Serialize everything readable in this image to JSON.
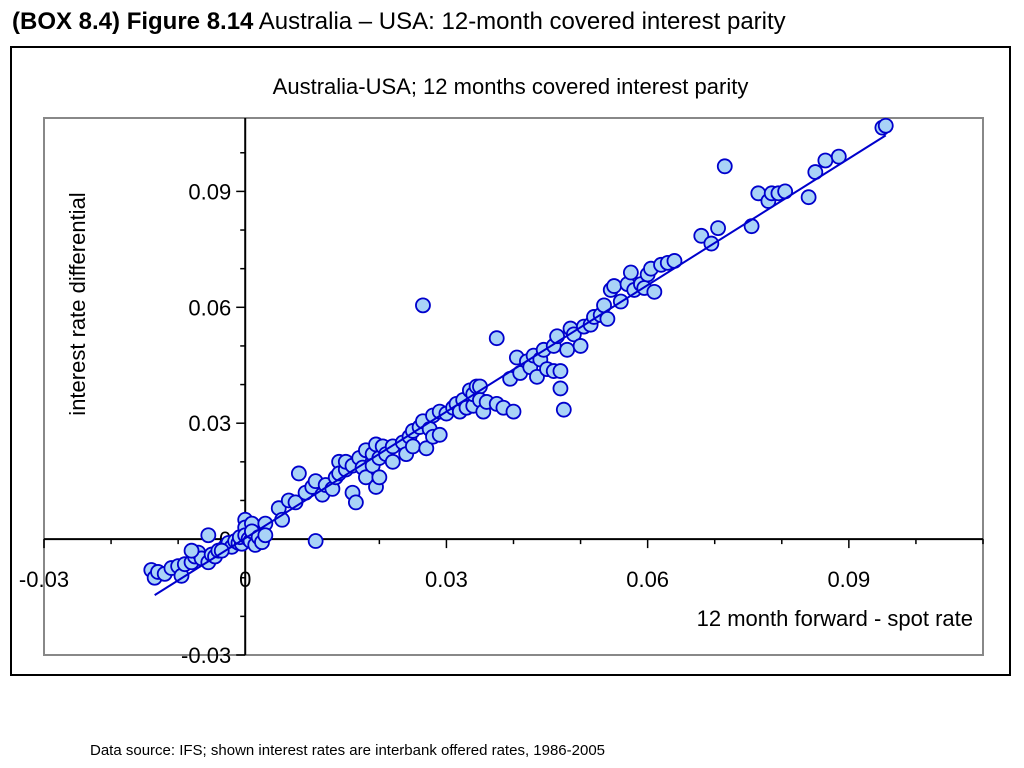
{
  "heading": {
    "prefix": "(BOX 8.4) Figure 8.14",
    "text": "Australia – USA: 12-month covered interest parity"
  },
  "source_note": "Data source: IFS; shown interest rates are interbank offered rates, 1986-2005",
  "colors": {
    "marker_fill": "#a9d3f7",
    "marker_stroke": "#0000cc",
    "fit_line": "#0000cc",
    "plot_border": "#888888"
  },
  "chart_data": {
    "type": "scatter",
    "title": "Australia-USA; 12 months covered interest parity",
    "xlabel": "12 month forward - spot rate",
    "ylabel": "interest rate differential",
    "xlim": [
      -0.03,
      0.11
    ],
    "ylim": [
      -0.03,
      0.109
    ],
    "x_ticks": [
      -0.03,
      0,
      0.03,
      0.06,
      0.09
    ],
    "x_tick_labels": [
      "-0.03",
      "0",
      "0.03",
      "0.06",
      "0.09"
    ],
    "y_ticks": [
      -0.03,
      0,
      0.03,
      0.06,
      0.09
    ],
    "y_tick_labels": [
      "-0.03",
      "0",
      "0.03",
      "0.06",
      "0.09"
    ],
    "grid": false,
    "legend": false,
    "fit_line": {
      "x": [
        -0.0135,
        0.0955
      ],
      "y": [
        -0.0145,
        0.1045
      ]
    },
    "series": [
      {
        "points": [
          [
            -0.014,
            -0.008
          ],
          [
            -0.0135,
            -0.01
          ],
          [
            -0.013,
            -0.0085
          ],
          [
            -0.012,
            -0.009
          ],
          [
            -0.011,
            -0.0075
          ],
          [
            -0.01,
            -0.007
          ],
          [
            -0.0095,
            -0.0095
          ],
          [
            -0.009,
            -0.0065
          ],
          [
            -0.008,
            -0.006
          ],
          [
            -0.0075,
            -0.0045
          ],
          [
            -0.007,
            -0.0035
          ],
          [
            -0.0065,
            -0.005
          ],
          [
            -0.0055,
            -0.006
          ],
          [
            -0.005,
            -0.004
          ],
          [
            -0.0045,
            -0.0045
          ],
          [
            -0.004,
            -0.003
          ],
          [
            -0.003,
            -0.002
          ],
          [
            -0.0025,
            -0.001
          ],
          [
            -0.002,
            -0.002
          ],
          [
            -0.0015,
            -0.0005
          ],
          [
            -0.001,
            -0.001
          ],
          [
            -0.0005,
            -0.0012
          ],
          [
            -0.0008,
            0.0005
          ],
          [
            0.0,
            0.005
          ],
          [
            0.0,
            0.003
          ],
          [
            0.0,
            0.001
          ],
          [
            0.0005,
            0.0
          ],
          [
            0.0008,
            -0.0005
          ],
          [
            0.001,
            0.004
          ],
          [
            0.001,
            0.002
          ],
          [
            0.0015,
            -0.0015
          ],
          [
            0.002,
            0.0005
          ],
          [
            0.0025,
            -0.0008
          ],
          [
            0.003,
            0.004
          ],
          [
            0.003,
            0.001
          ],
          [
            -0.008,
            -0.003
          ],
          [
            -0.0055,
            0.001
          ],
          [
            -0.0035,
            -0.003
          ],
          [
            0.005,
            0.008
          ],
          [
            0.0055,
            0.005
          ],
          [
            0.0065,
            0.01
          ],
          [
            0.0075,
            0.0095
          ],
          [
            0.008,
            0.017
          ],
          [
            0.009,
            0.012
          ],
          [
            0.01,
            0.0135
          ],
          [
            0.0105,
            0.015
          ],
          [
            0.0115,
            0.0115
          ],
          [
            0.012,
            0.014
          ],
          [
            0.013,
            0.013
          ],
          [
            0.0135,
            0.016
          ],
          [
            0.014,
            0.02
          ],
          [
            0.014,
            0.017
          ],
          [
            0.015,
            0.018
          ],
          [
            0.015,
            0.02
          ],
          [
            0.016,
            0.012
          ],
          [
            0.016,
            0.019
          ],
          [
            0.0165,
            0.0095
          ],
          [
            0.017,
            0.021
          ],
          [
            0.0175,
            0.0185
          ],
          [
            0.018,
            0.023
          ],
          [
            0.018,
            0.016
          ],
          [
            0.019,
            0.022
          ],
          [
            0.019,
            0.019
          ],
          [
            0.0195,
            0.0245
          ],
          [
            0.0195,
            0.0135
          ],
          [
            0.02,
            0.021
          ],
          [
            0.02,
            0.016
          ],
          [
            0.0205,
            0.024
          ],
          [
            0.021,
            0.022
          ],
          [
            0.022,
            0.024
          ],
          [
            0.022,
            0.02
          ],
          [
            0.0235,
            0.025
          ],
          [
            0.024,
            0.022
          ],
          [
            0.0245,
            0.0265
          ],
          [
            0.025,
            0.024
          ],
          [
            0.025,
            0.028
          ],
          [
            0.026,
            0.029
          ],
          [
            0.0265,
            0.0305
          ],
          [
            0.027,
            0.0235
          ],
          [
            0.0275,
            0.0285
          ],
          [
            0.028,
            0.0265
          ],
          [
            0.028,
            0.032
          ],
          [
            0.029,
            0.033
          ],
          [
            0.029,
            0.027
          ],
          [
            0.03,
            0.0325
          ],
          [
            0.031,
            0.034
          ],
          [
            0.0315,
            0.035
          ],
          [
            0.032,
            0.033
          ],
          [
            0.0325,
            0.036
          ],
          [
            0.033,
            0.034
          ],
          [
            0.0335,
            0.0385
          ],
          [
            0.034,
            0.0345
          ],
          [
            0.034,
            0.0375
          ],
          [
            0.0345,
            0.0395
          ],
          [
            0.035,
            0.0395
          ],
          [
            0.035,
            0.036
          ],
          [
            0.0355,
            0.033
          ],
          [
            0.036,
            0.0355
          ],
          [
            0.0375,
            0.035
          ],
          [
            0.0385,
            0.034
          ],
          [
            0.0375,
            0.052
          ],
          [
            0.0395,
            0.0415
          ],
          [
            0.04,
            0.033
          ],
          [
            0.0405,
            0.047
          ],
          [
            0.041,
            0.043
          ],
          [
            0.042,
            0.046
          ],
          [
            0.0425,
            0.0445
          ],
          [
            0.043,
            0.0475
          ],
          [
            0.0435,
            0.042
          ],
          [
            0.044,
            0.0465
          ],
          [
            0.0445,
            0.049
          ],
          [
            0.045,
            0.044
          ],
          [
            0.046,
            0.05
          ],
          [
            0.046,
            0.0435
          ],
          [
            0.0465,
            0.0525
          ],
          [
            0.047,
            0.039
          ],
          [
            0.047,
            0.0435
          ],
          [
            0.0475,
            0.0335
          ],
          [
            0.048,
            0.049
          ],
          [
            0.0485,
            0.0545
          ],
          [
            0.049,
            0.053
          ],
          [
            0.05,
            0.05
          ],
          [
            0.0505,
            0.055
          ],
          [
            0.0515,
            0.0555
          ],
          [
            0.052,
            0.0575
          ],
          [
            0.053,
            0.058
          ],
          [
            0.0535,
            0.0605
          ],
          [
            0.054,
            0.057
          ],
          [
            0.0545,
            0.0645
          ],
          [
            0.055,
            0.0655
          ],
          [
            0.056,
            0.0615
          ],
          [
            0.057,
            0.066
          ],
          [
            0.0575,
            0.069
          ],
          [
            0.058,
            0.0645
          ],
          [
            0.059,
            0.066
          ],
          [
            0.0595,
            0.065
          ],
          [
            0.06,
            0.0685
          ],
          [
            0.0605,
            0.07
          ],
          [
            0.061,
            0.064
          ],
          [
            0.062,
            0.071
          ],
          [
            0.063,
            0.0715
          ],
          [
            0.064,
            0.072
          ],
          [
            0.068,
            0.0785
          ],
          [
            0.0695,
            0.0765
          ],
          [
            0.0705,
            0.0805
          ],
          [
            0.0715,
            0.0965
          ],
          [
            0.0755,
            0.081
          ],
          [
            0.0765,
            0.0895
          ],
          [
            0.078,
            0.0875
          ],
          [
            0.0785,
            0.0895
          ],
          [
            0.0795,
            0.0895
          ],
          [
            0.0805,
            0.09
          ],
          [
            0.084,
            0.0885
          ],
          [
            0.085,
            0.095
          ],
          [
            0.0865,
            0.098
          ],
          [
            0.0885,
            0.099
          ],
          [
            0.095,
            0.1065
          ],
          [
            0.0955,
            0.107
          ],
          [
            0.0265,
            0.0605
          ],
          [
            0.0105,
            -0.0005
          ]
        ]
      }
    ]
  }
}
